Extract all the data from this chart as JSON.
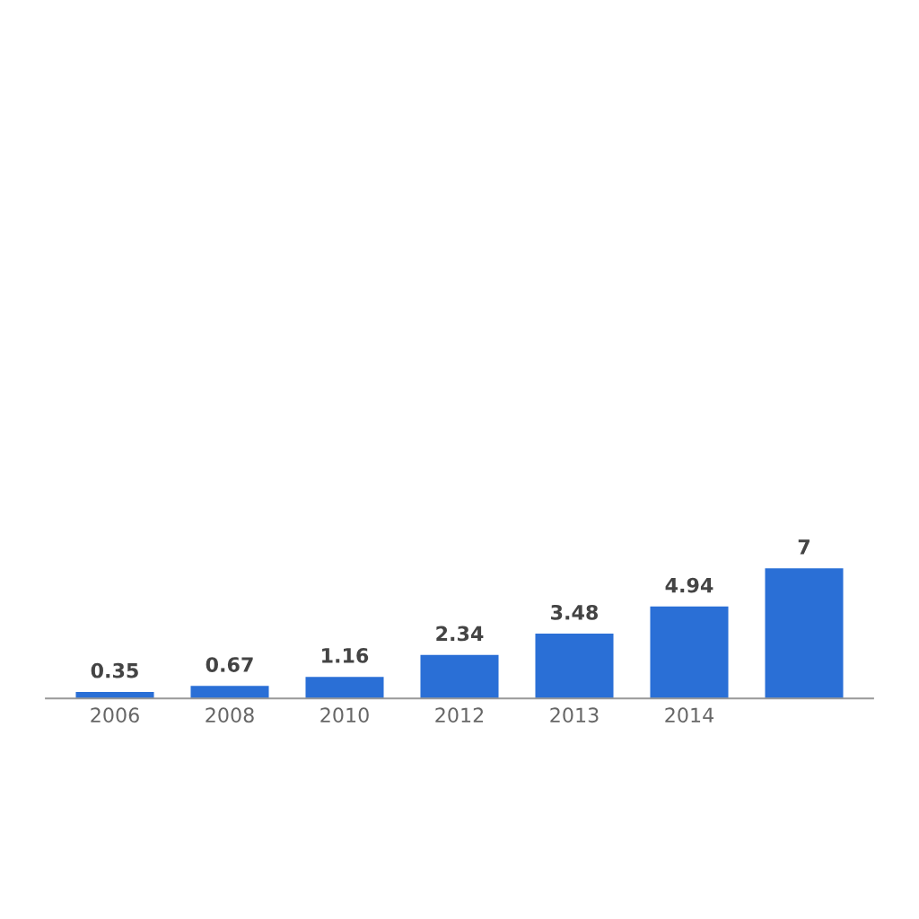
{
  "chart_data": {
    "type": "bar",
    "categories": [
      "2006",
      "2008",
      "2010",
      "2012",
      "2013",
      "2014",
      null
    ],
    "values": [
      0.35,
      0.67,
      1.16,
      2.34,
      3.48,
      4.94,
      7
    ],
    "color": "#2a6fd6",
    "data_labels": true,
    "grid": false
  }
}
